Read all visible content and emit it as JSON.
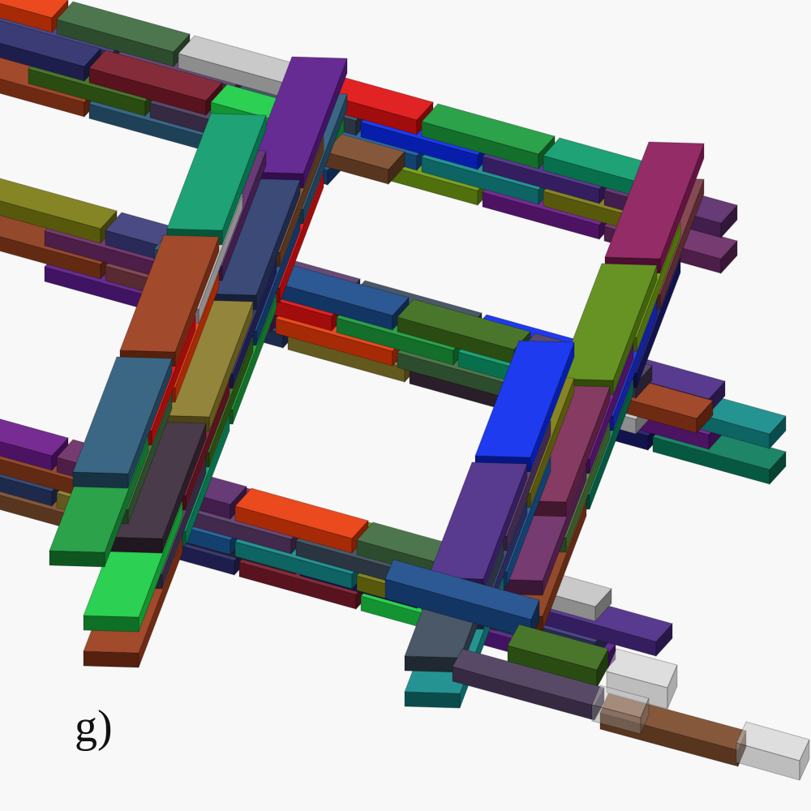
{
  "figure": {
    "label": "g)",
    "background": "#f8f8f8"
  },
  "scene": {
    "subject": "bricks-3d",
    "legend_colors": [
      "#7a3a44",
      "#1a2fd8",
      "#4f7a3a",
      "#6f9a12",
      "#6a1a8a",
      "#6a2a64",
      "#8a1a5a",
      "#5a8a12",
      "#7a2a54",
      "#1a5a9a",
      "#138a8a",
      "#7a7a12",
      "#3a3a7a",
      "#5a3a6a",
      "#3a4a5a",
      "#0a2aee",
      "#4a2a84",
      "#5a2a6a",
      "#e83a0a",
      "#3f6a3f",
      "#c4c4c4",
      "#e01010",
      "#1a9a3a",
      "#0a9a6a",
      "#9a3a1a",
      "#2a5a7a",
      "#1a4a8a",
      "#3a6a1a",
      "#4a3a5a",
      "#7a4a2a",
      "#2a2a6a",
      "#7a1a2a",
      "#1acc44",
      "#5a1a8a",
      "#2a3a6a",
      "#8a7a2a",
      "#3a2a3a",
      "#1a1a6a",
      "#0a7a5a",
      "#8a3a1a"
    ]
  }
}
